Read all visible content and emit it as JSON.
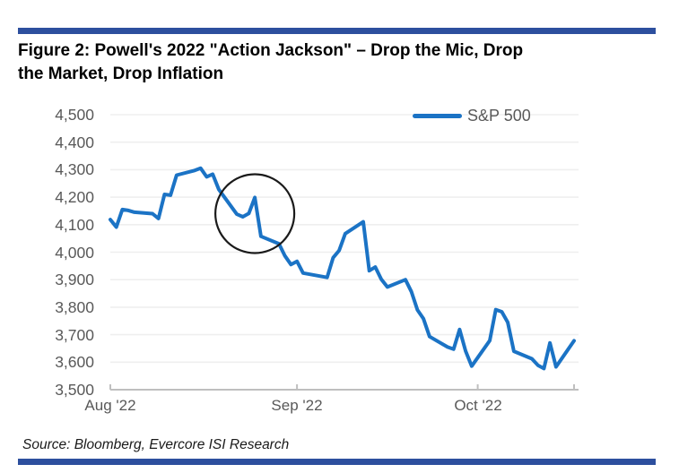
{
  "header": {
    "title_full": "Figure 2: Powell's 2022 \"Action Jackson\" – Drop the Mic, Drop the Market, Drop Inflation"
  },
  "source_note": "Source: Bloomberg, Evercore ISI Research",
  "colors": {
    "accent_bar": "#2d4f9e",
    "line": "#1b73c5",
    "gridline": "#efefef",
    "axis": "#bfbfbf",
    "tick_text": "#595959",
    "annotation": "#1a1a1a"
  },
  "chart_data": {
    "type": "line",
    "title": "Figure 2: Powell's 2022 \"Action Jackson\" – Drop the Mic, Drop the Market, Drop Inflation",
    "title_lines": [
      "Figure 2: Powell's 2022 \"Action Jackson\" – Drop the Mic, Drop",
      "the Market, Drop Inflation"
    ],
    "grid": true,
    "legend_position": "top-right-inside",
    "x_axis": {
      "start_date": "2022-08-01",
      "end_date": "2022-10-17",
      "ticks": [
        {
          "date": "2022-08-01",
          "label": "Aug '22"
        },
        {
          "date": "2022-09-01",
          "label": "Sep '22"
        },
        {
          "date": "2022-10-01",
          "label": "Oct '22"
        }
      ]
    },
    "y_axis": {
      "min": 3500,
      "max": 4500,
      "step": 100,
      "tick_labels": [
        "4,500",
        "4,400",
        "4,300",
        "4,200",
        "4,100",
        "4,000",
        "3,900",
        "3,800",
        "3,700",
        "3,600",
        "3,500"
      ]
    },
    "annotation": {
      "shape": "circle",
      "center_date": "2022-08-25",
      "center_value": 4140,
      "radius_px": 44,
      "color": "#1a1a1a"
    },
    "series": [
      {
        "name": "S&P 500",
        "color": "#1b73c5",
        "points": [
          [
            "2022-08-01",
            4118.63
          ],
          [
            "2022-08-02",
            4091.19
          ],
          [
            "2022-08-03",
            4155.17
          ],
          [
            "2022-08-04",
            4151.94
          ],
          [
            "2022-08-05",
            4145.19
          ],
          [
            "2022-08-08",
            4140.06
          ],
          [
            "2022-08-09",
            4122.47
          ],
          [
            "2022-08-10",
            4210.24
          ],
          [
            "2022-08-11",
            4207.27
          ],
          [
            "2022-08-12",
            4280.15
          ],
          [
            "2022-08-15",
            4297.14
          ],
          [
            "2022-08-16",
            4305.2
          ],
          [
            "2022-08-17",
            4274.04
          ],
          [
            "2022-08-18",
            4283.74
          ],
          [
            "2022-08-19",
            4228.48
          ],
          [
            "2022-08-22",
            4137.99
          ],
          [
            "2022-08-23",
            4128.73
          ],
          [
            "2022-08-24",
            4140.77
          ],
          [
            "2022-08-25",
            4199.12
          ],
          [
            "2022-08-26",
            4057.66
          ],
          [
            "2022-08-29",
            4030.61
          ],
          [
            "2022-08-30",
            3986.16
          ],
          [
            "2022-08-31",
            3955.0
          ],
          [
            "2022-09-01",
            3966.85
          ],
          [
            "2022-09-02",
            3924.26
          ],
          [
            "2022-09-06",
            3908.19
          ],
          [
            "2022-09-07",
            3979.87
          ],
          [
            "2022-09-08",
            4006.18
          ],
          [
            "2022-09-09",
            4067.36
          ],
          [
            "2022-09-12",
            4110.41
          ],
          [
            "2022-09-13",
            3932.69
          ],
          [
            "2022-09-14",
            3946.01
          ],
          [
            "2022-09-15",
            3901.35
          ],
          [
            "2022-09-16",
            3873.33
          ],
          [
            "2022-09-19",
            3899.89
          ],
          [
            "2022-09-20",
            3855.93
          ],
          [
            "2022-09-21",
            3789.93
          ],
          [
            "2022-09-22",
            3757.99
          ],
          [
            "2022-09-23",
            3693.23
          ],
          [
            "2022-09-26",
            3655.04
          ],
          [
            "2022-09-27",
            3647.29
          ],
          [
            "2022-09-28",
            3719.04
          ],
          [
            "2022-09-29",
            3640.47
          ],
          [
            "2022-09-30",
            3585.62
          ],
          [
            "2022-10-03",
            3678.43
          ],
          [
            "2022-10-04",
            3790.93
          ],
          [
            "2022-10-05",
            3783.28
          ],
          [
            "2022-10-06",
            3744.52
          ],
          [
            "2022-10-07",
            3639.66
          ],
          [
            "2022-10-10",
            3612.39
          ],
          [
            "2022-10-11",
            3588.84
          ],
          [
            "2022-10-12",
            3577.03
          ],
          [
            "2022-10-13",
            3669.91
          ],
          [
            "2022-10-14",
            3583.07
          ],
          [
            "2022-10-17",
            3677.95
          ]
        ]
      }
    ]
  }
}
